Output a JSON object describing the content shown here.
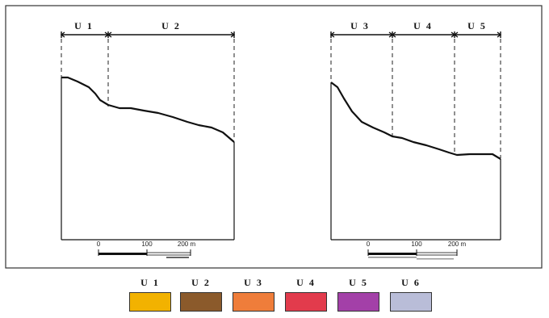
{
  "panels": [
    {
      "id": "left",
      "units": [
        "U 1",
        "U 2"
      ],
      "scale": {
        "ticks": [
          "0",
          "100",
          "200 m"
        ]
      }
    },
    {
      "id": "right",
      "units": [
        "U 3",
        "U 4",
        "U 5"
      ],
      "scale": {
        "ticks": [
          "0",
          "100",
          "200 m"
        ]
      }
    }
  ],
  "legend": [
    {
      "label": "U 1",
      "color": "#f2b200"
    },
    {
      "label": "U 2",
      "color": "#8b5a2b"
    },
    {
      "label": "U 3",
      "color": "#ef7d3a"
    },
    {
      "label": "U 4",
      "color": "#e23b4c"
    },
    {
      "label": "U 5",
      "color": "#a340a8"
    },
    {
      "label": "U 6",
      "color": "#b9bdd8"
    }
  ]
}
